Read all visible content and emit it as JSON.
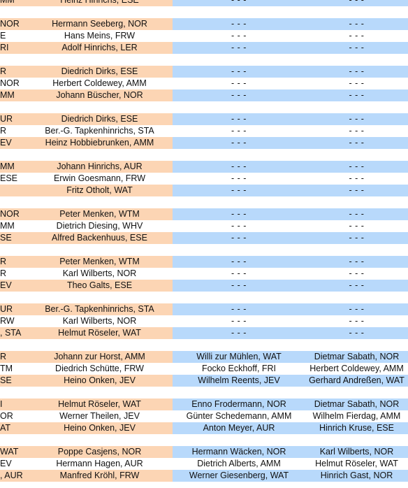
{
  "colors": {
    "orange": "#fcd5b4",
    "blue": "#b8d9fb",
    "white": "#ffffff"
  },
  "rows": [
    {
      "c0": "MM",
      "c1": "Heinz Hinrichs, ESE",
      "c2": "- - -",
      "c3": "- - -"
    },
    null,
    {
      "c0": "NOR",
      "c1": "Hermann Seeberg, NOR",
      "c2": "- - -",
      "c3": "- - -"
    },
    {
      "c0": "E",
      "c1": "Hans Meins, FRW",
      "c2": "- - -",
      "c3": "- - -"
    },
    {
      "c0": "RI",
      "c1": "Adolf Hinrichs, LER",
      "c2": "- - -",
      "c3": "- - -"
    },
    null,
    {
      "c0": "R",
      "c1": "Diedrich Dirks, ESE",
      "c2": "- - -",
      "c3": "- - -"
    },
    {
      "c0": "NOR",
      "c1": "Herbert Coldewey, AMM",
      "c2": "- - -",
      "c3": "- - -"
    },
    {
      "c0": "MM",
      "c1": "Johann Büscher, NOR",
      "c2": "- - -",
      "c3": "- - -"
    },
    null,
    {
      "c0": "UR",
      "c1": "Diedrich Dirks, ESE",
      "c2": "- - -",
      "c3": "- - -"
    },
    {
      "c0": "R",
      "c1": "Ber.-G. Tapkenhinrichs, STA",
      "c2": "- - -",
      "c3": "- - -"
    },
    {
      "c0": "EV",
      "c1": "Heinz Hobbiebrunken, AMM",
      "c2": "- - -",
      "c3": "- - -"
    },
    null,
    {
      "c0": "MM",
      "c1": "Johann Hinrichs, AUR",
      "c2": "- - -",
      "c3": "- - -"
    },
    {
      "c0": "ESE",
      "c1": "Erwin Goesmann, FRW",
      "c2": "- - -",
      "c3": "- - -"
    },
    {
      "c0": "",
      "c1": "Fritz Otholt, WAT",
      "c2": "- - -",
      "c3": "- - -"
    },
    null,
    {
      "c0": "NOR",
      "c1": "Peter Menken, WTM",
      "c2": "- - -",
      "c3": "- - -"
    },
    {
      "c0": "MM",
      "c1": "Dietrich Diesing, WHV",
      "c2": "- - -",
      "c3": "- - -"
    },
    {
      "c0": "SE",
      "c1": "Alfred Backenhuus, ESE",
      "c2": "- - -",
      "c3": "- - -"
    },
    null,
    {
      "c0": "R",
      "c1": "Peter Menken, WTM",
      "c2": "- - -",
      "c3": "- - -"
    },
    {
      "c0": "R",
      "c1": "Karl Wilberts, NOR",
      "c2": "- - -",
      "c3": "- - -"
    },
    {
      "c0": "EV",
      "c1": "Theo Galts, ESE",
      "c2": "- - -",
      "c3": "- - -"
    },
    null,
    {
      "c0": "UR",
      "c1": "Ber.-G. Tapkenhinrichs, STA",
      "c2": "- - -",
      "c3": "- - -"
    },
    {
      "c0": "RW",
      "c1": "Karl Wilberts, NOR",
      "c2": "- - -",
      "c3": "- - -"
    },
    {
      "c0": ", STA",
      "c1": "Helmut Röseler, WAT",
      "c2": "- - -",
      "c3": "- - -"
    },
    null,
    {
      "c0": "R",
      "c1": "Johann zur Horst, AMM",
      "c2": "Willi zur Mühlen, WAT",
      "c3": "Dietmar Sabath, NOR"
    },
    {
      "c0": "TM",
      "c1": "Diedrich Schütte, FRW",
      "c2": "Focko Eckhoff, FRI",
      "c3": "Herbert Coldewey, AMM"
    },
    {
      "c0": "SE",
      "c1": "Heino Onken, JEV",
      "c2": "Wilhelm Reents, JEV",
      "c3": "Gerhard Andreßen, WAT"
    },
    null,
    {
      "c0": "I",
      "c1": "Helmut Röseler, WAT",
      "c2": "Enno Frodermann, NOR",
      "c3": "Dietmar Sabath, NOR"
    },
    {
      "c0": "OR",
      "c1": "Werner Theilen, JEV",
      "c2": "Günter Schedemann, AMM",
      "c3": "Wilhelm Fierdag, AMM"
    },
    {
      "c0": "AT",
      "c1": "Heino Onken, JEV",
      "c2": "Anton Meyer, AUR",
      "c3": "Hinrich Kruse, ESE"
    },
    null,
    {
      "c0": "WAT",
      "c1": "Poppe Casjens, NOR",
      "c2": "Hermann Wäcken, NOR",
      "c3": "Karl Wilberts, NOR"
    },
    {
      "c0": "EV",
      "c1": "Hermann Hagen, AUR",
      "c2": "Dietrich Alberts, AMM",
      "c3": "Helmut Röseler, WAT"
    },
    {
      "c0": ", AUR",
      "c1": "Manfred Kröhl, FRW",
      "c2": "Werner Giesenberg, WAT",
      "c3": "Hinrich Gast, NOR"
    }
  ]
}
